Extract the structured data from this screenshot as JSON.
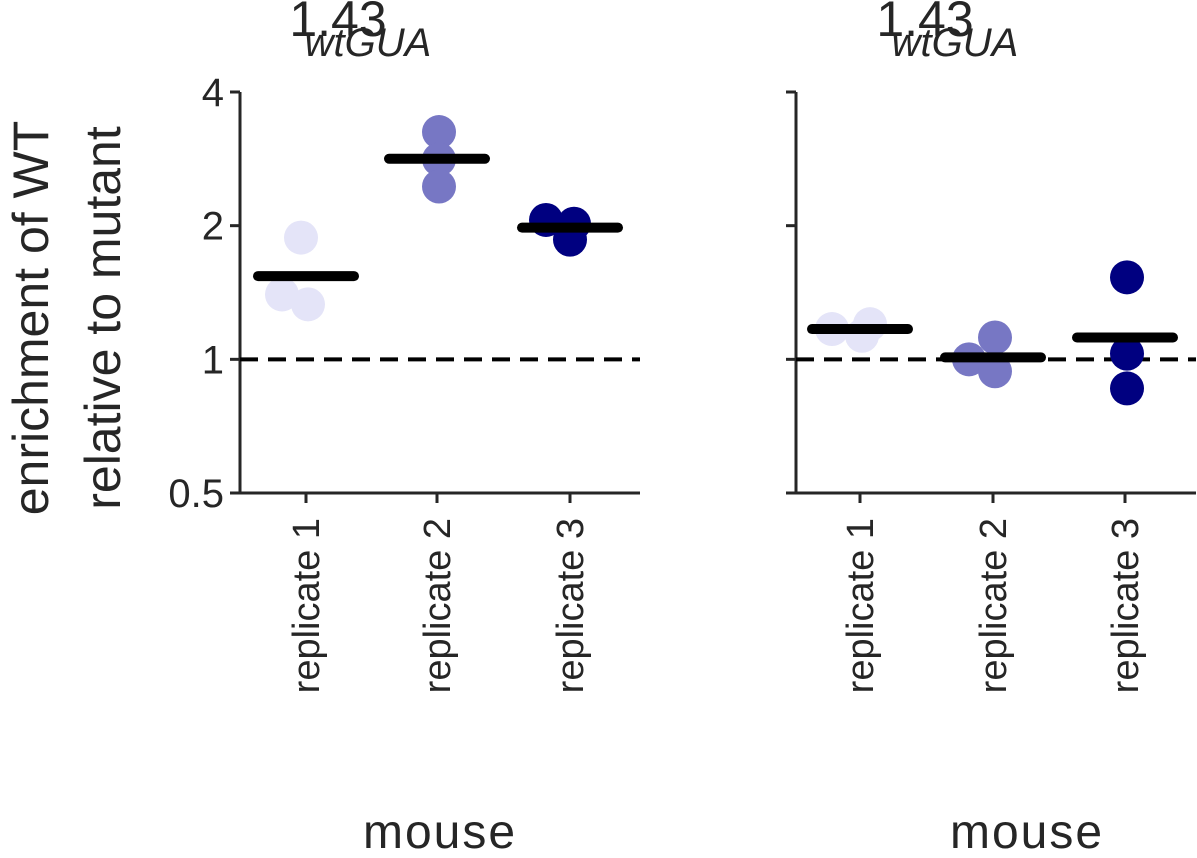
{
  "chart_data": [
    {
      "type": "scatter",
      "title": "1.43",
      "subtitle": "wtGUA",
      "xlabel": "mouse",
      "ylabel": "enrichment of WT\nrelative to mutant",
      "y_scale": "log2",
      "ylim": [
        0.5,
        4
      ],
      "yticks": [
        0.5,
        1,
        2,
        4
      ],
      "ytick_labels": [
        "0.5",
        "1",
        "2",
        "4"
      ],
      "categories": [
        "replicate 1",
        "replicate 2",
        "replicate 3"
      ],
      "reference_line": 1,
      "series": [
        {
          "category": "replicate 1",
          "color": "#e4e4f8",
          "points": [
            1.88,
            1.4,
            1.33
          ],
          "mean": 1.54
        },
        {
          "category": "replicate 2",
          "color": "#7777c4",
          "points": [
            3.25,
            2.82,
            2.45
          ],
          "mean": 2.83
        },
        {
          "category": "replicate 3",
          "color": "#000080",
          "points": [
            2.06,
            2.02,
            1.86
          ],
          "mean": 1.98
        }
      ]
    },
    {
      "type": "scatter",
      "title": "1.43",
      "subtitle": "wtGUA",
      "xlabel": "mouse",
      "ylabel": "",
      "y_scale": "log2",
      "ylim": [
        0.5,
        4
      ],
      "yticks": [
        0.5,
        1,
        2,
        4
      ],
      "ytick_labels": [
        "",
        "",
        "",
        ""
      ],
      "categories": [
        "replicate 1",
        "replicate 2",
        "replicate 3"
      ],
      "reference_line": 1,
      "series": [
        {
          "category": "replicate 1",
          "color": "#e4e4f8",
          "points": [
            1.17,
            1.2,
            1.13
          ],
          "mean": 1.17
        },
        {
          "category": "replicate 2",
          "color": "#7777c4",
          "points": [
            1.0,
            1.12,
            0.94
          ],
          "mean": 1.01
        },
        {
          "category": "replicate 3",
          "color": "#000080",
          "points": [
            1.53,
            1.03,
            0.86
          ],
          "mean": 1.12
        }
      ]
    }
  ]
}
